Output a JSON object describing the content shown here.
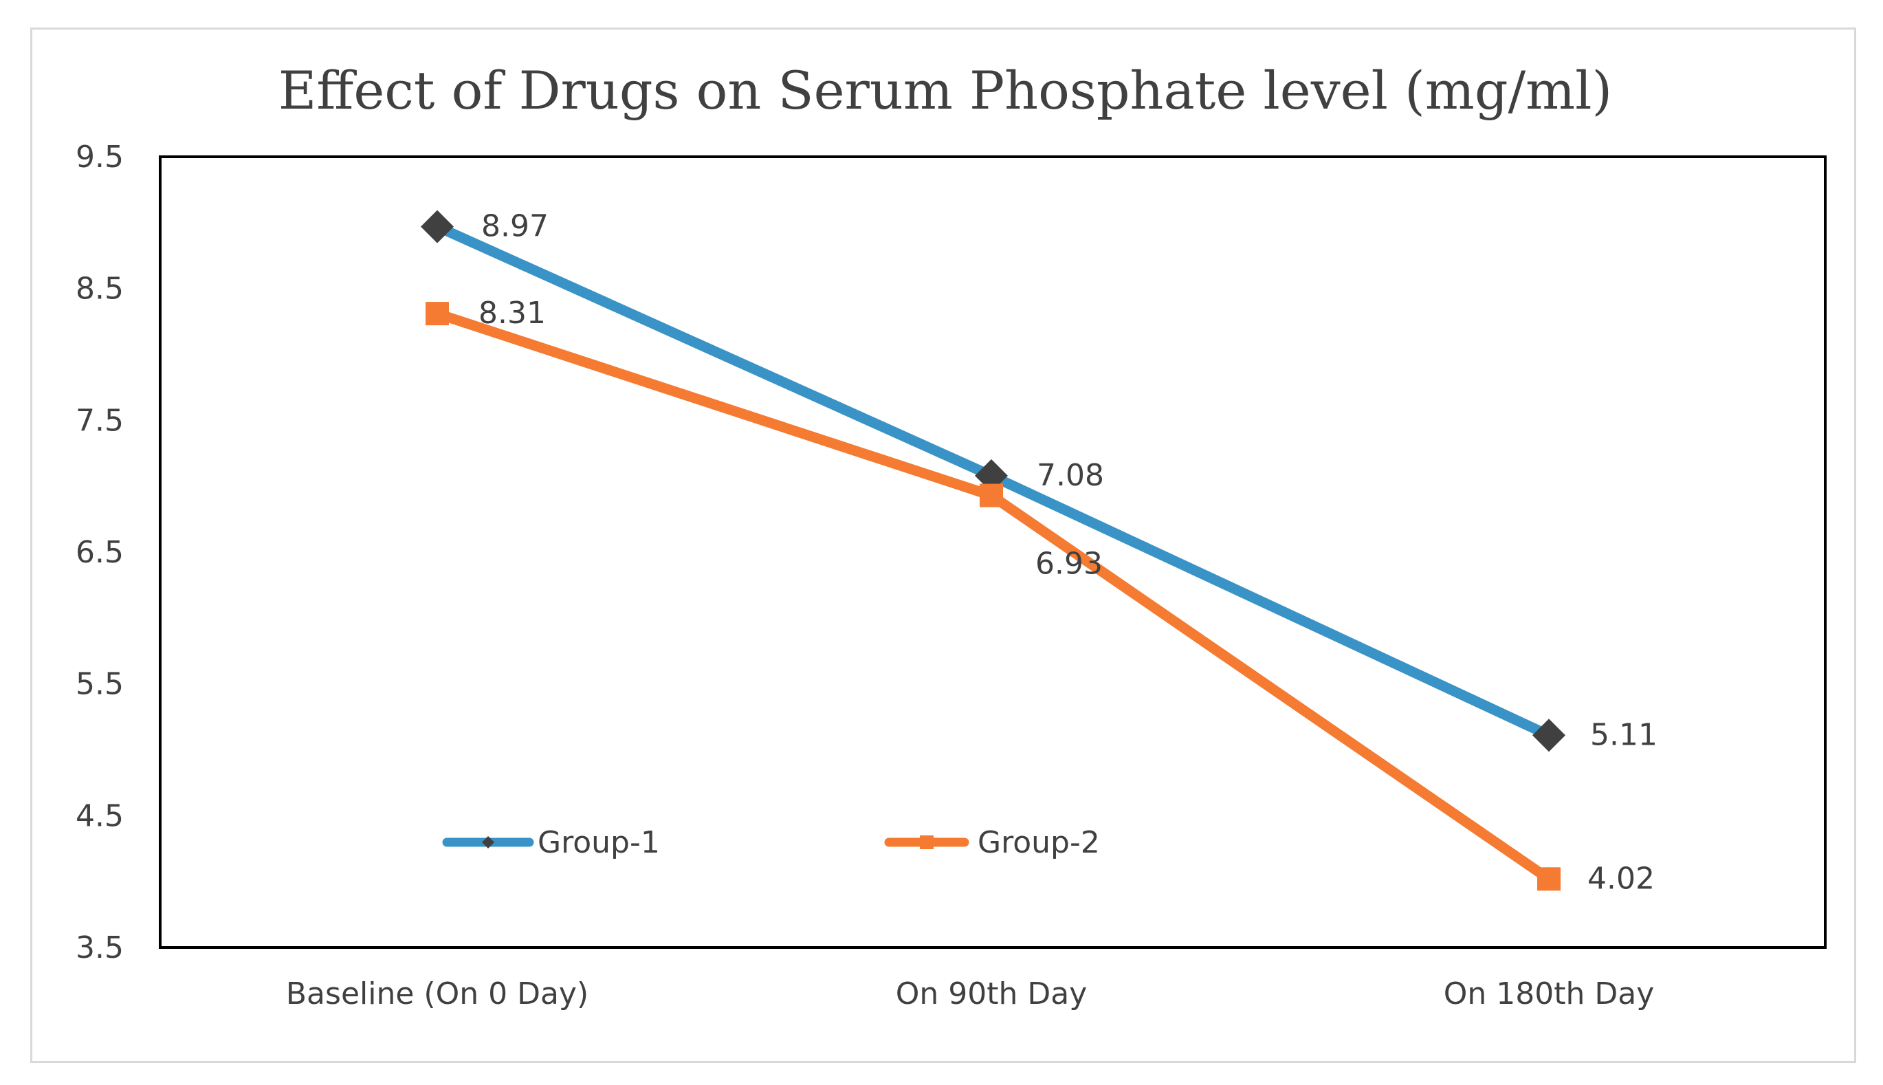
{
  "chart_data": {
    "type": "line",
    "title": "Effect of Drugs on Serum Phosphate level  (mg/ml)",
    "xlabel": "",
    "ylabel": "",
    "categories": [
      "Baseline (On 0 Day)",
      "On 90th Day",
      "On 180th Day"
    ],
    "ylim": [
      3.5,
      9.5
    ],
    "yticks": [
      "9.5",
      "8.5",
      "7.5",
      "6.5",
      "5.5",
      "4.5",
      "3.5"
    ],
    "series": [
      {
        "name": "Group-1",
        "values": [
          8.97,
          7.08,
          5.11
        ],
        "labels": [
          "8.97",
          "7.08",
          "5.11"
        ],
        "color": "#3a93c6",
        "marker": "diamond",
        "marker_color": "#404040"
      },
      {
        "name": "Group-2",
        "values": [
          8.31,
          6.93,
          4.02
        ],
        "labels": [
          "8.31",
          "6.93",
          "4.02"
        ],
        "color": "#f47b31",
        "marker": "square",
        "marker_color": "#f47b31"
      }
    ],
    "legend_position": "inside-bottom-left",
    "grid": false
  }
}
